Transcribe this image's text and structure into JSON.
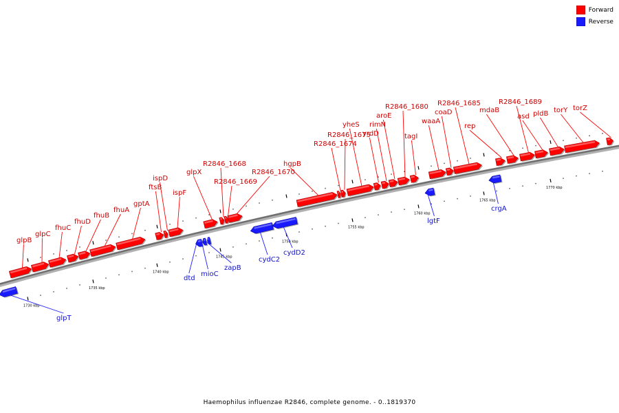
{
  "legend": {
    "forward_label": "Forward",
    "reverse_label": "Reverse",
    "forward_color": "#ff0000",
    "reverse_color": "#1a1aff"
  },
  "footer": {
    "caption": "Haemophilus influenzae R2846, complete genome. - 0..1819370"
  },
  "genome": {
    "forward_genes": [
      {
        "name": "glpB"
      },
      {
        "name": "glpC"
      },
      {
        "name": "fhuC"
      },
      {
        "name": "fhuD"
      },
      {
        "name": "fhuB"
      },
      {
        "name": "fhuA"
      },
      {
        "name": "gptA"
      },
      {
        "name": "ftsB"
      },
      {
        "name": "ispD"
      },
      {
        "name": "ispF"
      },
      {
        "name": "glpX"
      },
      {
        "name": "R2846_1668"
      },
      {
        "name": "R2846_1669"
      },
      {
        "name": "R2846_1670"
      },
      {
        "name": "hgpB"
      },
      {
        "name": "R2846_1674"
      },
      {
        "name": "R2846_1675"
      },
      {
        "name": "yheS"
      },
      {
        "name": "yrdD"
      },
      {
        "name": "rimN"
      },
      {
        "name": "aroE"
      },
      {
        "name": "R2846_1680"
      },
      {
        "name": "tagI"
      },
      {
        "name": "waaA"
      },
      {
        "name": "coaD"
      },
      {
        "name": "R2846_1685"
      },
      {
        "name": "rep"
      },
      {
        "name": "mdaB"
      },
      {
        "name": "R2846_1689"
      },
      {
        "name": "asd"
      },
      {
        "name": "pldB"
      },
      {
        "name": "torY"
      },
      {
        "name": "torZ"
      }
    ],
    "reverse_genes": [
      {
        "name": "glpT"
      },
      {
        "name": "dtd"
      },
      {
        "name": "mioC"
      },
      {
        "name": "zapB"
      },
      {
        "name": "cydC2"
      },
      {
        "name": "cydD2"
      },
      {
        "name": "lgtF"
      },
      {
        "name": "crgA"
      }
    ],
    "ticks": [
      "1730 kbp",
      "1735 kbp",
      "1740 kbp",
      "1745 kbp",
      "1750 kbp",
      "1755 kbp",
      "1760 kbp",
      "1765 kbp",
      "1770 kbp"
    ]
  }
}
